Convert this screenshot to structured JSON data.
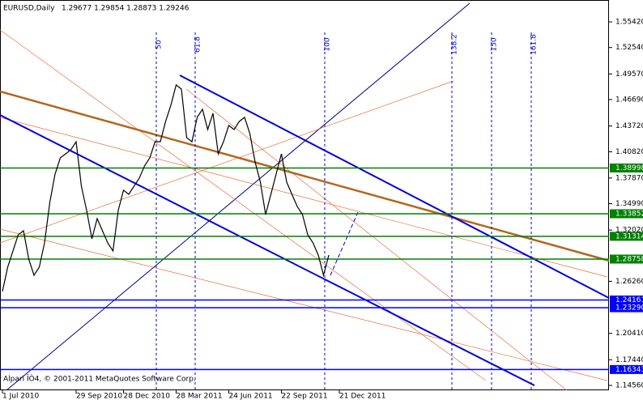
{
  "chart_data": {
    "type": "line",
    "title": "EURUSD,Daily",
    "subtitle": "1.29677 1.29854 1.28873 1.29246",
    "annotation": "Alpari ÎÒ4, © 2001-2011 MetaQuotes Software Corp.",
    "categories": [
      "1 Jul 2010",
      null,
      null,
      null,
      null,
      null,
      null,
      null,
      null,
      null,
      null,
      null,
      null,
      null,
      "29 Sep 2010",
      null,
      null,
      null,
      null,
      null,
      null,
      null,
      null,
      "28 Dec 2010",
      null,
      null,
      null,
      null,
      null,
      null,
      null,
      null,
      null,
      "28 Mar 2011",
      null,
      null,
      null,
      null,
      null,
      null,
      null,
      null,
      null,
      "24 Jun 2011",
      null,
      null,
      null,
      null,
      null,
      null,
      null,
      null,
      null,
      "22 Sep 2011",
      null,
      null,
      null,
      null,
      null,
      null,
      null,
      null,
      null,
      null,
      "21 Dec 2011"
    ],
    "series": [
      {
        "name": "EURUSD",
        "color": "#000000",
        "values": [
          1.2512,
          1.2785,
          1.2967,
          1.3149,
          1.3194,
          1.2876,
          1.2694,
          1.2785,
          1.3058,
          1.3513,
          1.3832,
          1.4014,
          1.4059,
          1.4105,
          1.4195,
          1.3695,
          1.3422,
          1.3104,
          1.3331,
          1.3194,
          1.3058,
          1.2967,
          1.3422,
          1.365,
          1.3604,
          1.3695,
          1.3786,
          1.3923,
          1.4014,
          1.4195,
          1.4195,
          1.4423,
          1.4605,
          1.4833,
          1.4787,
          1.4241,
          1.4195,
          1.4469,
          1.456,
          1.4332,
          1.4514,
          1.4059,
          1.4195,
          1.4378,
          1.4332,
          1.4423,
          1.4469,
          1.4287,
          1.3968,
          1.3741,
          1.3376,
          1.3604,
          1.3832,
          1.4059,
          1.3741,
          1.3604,
          1.3468,
          1.3376,
          1.3149,
          1.3058,
          1.2921,
          1.2694,
          1.2921,
          null,
          null
        ]
      }
    ],
    "ylim": [
      1.1401,
      1.5788
    ],
    "yticks": [
      {
        "value": 1.5542,
        "label": "1.55420"
      },
      {
        "value": 1.5254,
        "label": "1.52540"
      },
      {
        "value": 1.4957,
        "label": "1.49570"
      },
      {
        "value": 1.4669,
        "label": "1.46690"
      },
      {
        "value": 1.4372,
        "label": "1.43720"
      },
      {
        "value": 1.4082,
        "label": "1.40820"
      },
      {
        "value": 1.3787,
        "label": "1.37870"
      },
      {
        "value": 1.3499,
        "label": "1.34990"
      },
      {
        "value": 1.3202,
        "label": "1.32020"
      },
      {
        "value": 1.2626,
        "label": "1.26260"
      },
      {
        "value": 1.2041,
        "label": "1.20410"
      },
      {
        "value": 1.1744,
        "label": "1.17440"
      },
      {
        "value": 1.1456,
        "label": "1.14560"
      }
    ],
    "levels": [
      {
        "value": 1.38998,
        "label": "1.38998",
        "color": "#008000"
      },
      {
        "value": 1.33852,
        "label": "1.33852",
        "color": "#008000"
      },
      {
        "value": 1.31314,
        "label": "1.31314",
        "color": "#008000"
      },
      {
        "value": 1.28758,
        "label": "1.28758",
        "color": "#008000"
      },
      {
        "value": 1.24161,
        "label": "1.24161",
        "color": "#0000ff"
      },
      {
        "value": 1.2329,
        "label": "1.23290",
        "color": "#0000ff"
      },
      {
        "value": 1.16343,
        "label": "1.16343",
        "color": "#0000ff"
      }
    ],
    "fib_labels": [
      "50",
      "61.8",
      "100",
      "138.2",
      "150",
      "161.8"
    ]
  }
}
